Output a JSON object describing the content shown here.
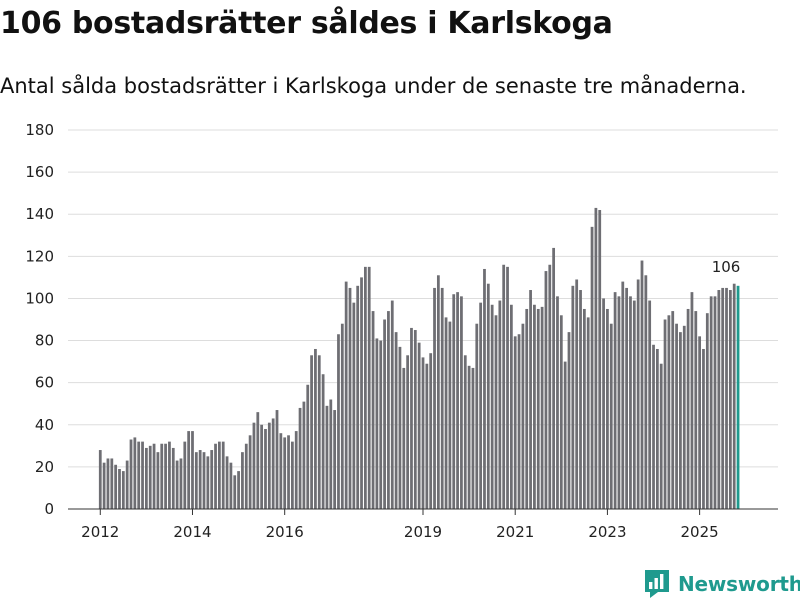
{
  "title": "106 bostadsrätter såldes i Karlskoga",
  "subtitle": "Antal sålda bostadsrätter i Karlskoga under de senaste tre månaderna.",
  "brand": "Newsworthy",
  "colors": {
    "bar": "#6e6e73",
    "highlight": "#1f9a8e",
    "grid": "#dddddd",
    "axis": "#333333"
  },
  "chart_data": {
    "type": "bar",
    "title": "106 bostadsrätter såldes i Karlskoga",
    "xlabel": "",
    "ylabel": "",
    "ylim": [
      0,
      180
    ],
    "yticks": [
      0,
      20,
      40,
      60,
      80,
      100,
      120,
      140,
      160,
      180
    ],
    "xlim": [
      2011.3,
      2026.7
    ],
    "xticks": [
      {
        "value": 2012,
        "label": "2012"
      },
      {
        "value": 2014,
        "label": "2014"
      },
      {
        "value": 2016,
        "label": "2016"
      },
      {
        "value": 2019,
        "label": "2019"
      },
      {
        "value": 2021,
        "label": "2021"
      },
      {
        "value": 2023,
        "label": "2023"
      },
      {
        "value": 2025,
        "label": "2025"
      }
    ],
    "start": 2012,
    "interval_per_bar": 0.0833333,
    "grid": true,
    "highlight_label": "106",
    "values": [
      28,
      22,
      24,
      24,
      21,
      19,
      18,
      23,
      33,
      34,
      32,
      32,
      29,
      30,
      31,
      27,
      31,
      31,
      32,
      29,
      23,
      24,
      32,
      37,
      37,
      27,
      28,
      27,
      25,
      28,
      31,
      32,
      32,
      25,
      22,
      16,
      18,
      27,
      31,
      35,
      41,
      46,
      40,
      38,
      41,
      43,
      47,
      36,
      34,
      35,
      32,
      37,
      48,
      51,
      59,
      73,
      76,
      73,
      64,
      49,
      52,
      47,
      83,
      88,
      108,
      105,
      98,
      106,
      110,
      115,
      115,
      94,
      81,
      80,
      90,
      94,
      99,
      84,
      77,
      67,
      73,
      86,
      85,
      79,
      72,
      69,
      74,
      105,
      111,
      105,
      91,
      89,
      102,
      103,
      101,
      73,
      68,
      67,
      88,
      98,
      114,
      107,
      97,
      92,
      99,
      116,
      115,
      97,
      82,
      83,
      88,
      95,
      104,
      97,
      95,
      96,
      113,
      116,
      124,
      101,
      92,
      70,
      84,
      106,
      109,
      104,
      95,
      91,
      134,
      143,
      142,
      100,
      95,
      88,
      103,
      101,
      108,
      105,
      101,
      99,
      109,
      118,
      111,
      99,
      78,
      76,
      69,
      90,
      92,
      94,
      88,
      84,
      87,
      95,
      103,
      94,
      82,
      76,
      93,
      101,
      101,
      104,
      105,
      105,
      104,
      107,
      106
    ]
  }
}
